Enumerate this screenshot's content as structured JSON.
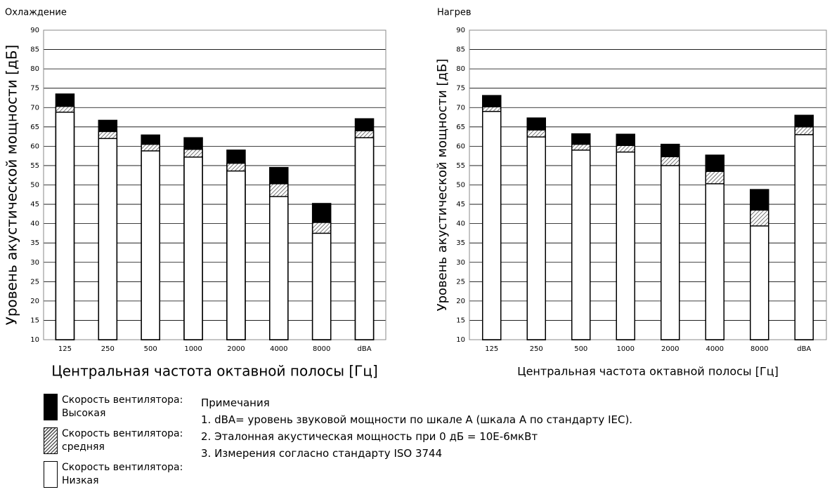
{
  "chart_data": [
    {
      "type": "bar",
      "title": "Охлаждение",
      "ylabel": "Уровень акустической мощности [дБ]",
      "xlabel": "Центральная частота октавной полосы [Гц]",
      "categories": [
        "125",
        "250",
        "500",
        "1000",
        "2000",
        "4000",
        "8000",
        "dBA"
      ],
      "series": [
        {
          "name": "Скорость вентилятора: Высокая",
          "color": "#000000",
          "values": [
            73.5,
            66.7,
            62.9,
            62.2,
            59,
            54.5,
            45.2,
            67.1
          ]
        },
        {
          "name": "Скорость вентилятора: средняя",
          "color": "#666666",
          "hatch": true,
          "values": [
            70.3,
            63.8,
            60.5,
            59.2,
            55.6,
            50.3,
            40.3,
            64
          ]
        },
        {
          "name": "Скорость вентилятора: Низкая",
          "color": "#ffffff",
          "values": [
            68.8,
            62,
            58.8,
            57.2,
            53.6,
            47,
            37.5,
            62.2
          ]
        }
      ],
      "ylim": [
        10,
        90
      ],
      "yticks": [
        10,
        15,
        20,
        25,
        30,
        35,
        40,
        45,
        50,
        55,
        60,
        65,
        70,
        75,
        80,
        85,
        90
      ],
      "grid": true
    },
    {
      "type": "bar",
      "title": "Нагрев",
      "ylabel": "Уровень акустической мощности [дБ]",
      "xlabel": "Центральная частота октавной полосы [Гц]",
      "categories": [
        "125",
        "250",
        "500",
        "1000",
        "2000",
        "4000",
        "8000",
        "dBA"
      ],
      "series": [
        {
          "name": "Скорость вентилятора: Высокая",
          "color": "#000000",
          "values": [
            73.1,
            67.3,
            63.2,
            63.1,
            60.5,
            57.7,
            48.8,
            68
          ]
        },
        {
          "name": "Скорость вентилятора: средняя",
          "color": "#666666",
          "hatch": true,
          "values": [
            70.2,
            64.2,
            60.5,
            60.2,
            57.3,
            53.5,
            43.5,
            65
          ]
        },
        {
          "name": "Скорость вентилятора: Низкая",
          "color": "#ffffff",
          "values": [
            69,
            62.4,
            59,
            58.5,
            55,
            50.3,
            39.4,
            63
          ]
        }
      ],
      "ylim": [
        10,
        90
      ],
      "yticks": [
        10,
        15,
        20,
        25,
        30,
        35,
        40,
        45,
        50,
        55,
        60,
        65,
        70,
        75,
        80,
        85,
        90
      ],
      "grid": true
    }
  ],
  "notes": {
    "title": "Примечания",
    "items": [
      "1. dBA= уровень звуковой мощности по шкале А (шкала А по стандарту IEC).",
      "2. Эталонная акустическая мощность при 0 дБ = 10E-6мкВт",
      "3. Измерения согласно стандарту ISO 3744"
    ]
  }
}
